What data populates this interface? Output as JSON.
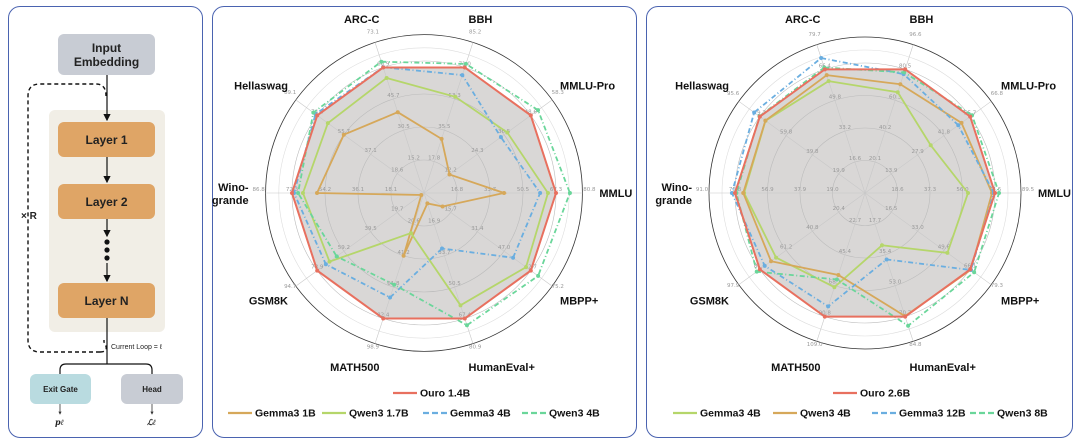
{
  "diagram": {
    "input_embedding": "Input Embedding",
    "layers": [
      "Layer 1",
      "Layer 2",
      "Layer N"
    ],
    "repeat_label": "× R",
    "current_loop": "Current Loop = ℓ",
    "exit_gate": "Exit Gate",
    "head": "Head",
    "exit_output": "pℓ",
    "head_output": "ℒℓ",
    "colors": {
      "layer": "#dfa566",
      "embedding": "#c8ccd4",
      "exit_gate": "#b9dbe0",
      "stack_bg": "#f1eee6",
      "panel_border": "#4a63b0"
    }
  },
  "chart_data": [
    {
      "type": "radar",
      "axes": [
        "ARC-C",
        "BBH",
        "MMLU-Pro",
        "MMLU",
        "MBPP+",
        "HumanEval+",
        "MATH500",
        "GSM8K",
        "Wino-\ngrande",
        "Hellaswag"
      ],
      "ring_ticks": [
        [
          "15.2",
          "30.5",
          "45.7",
          "60.9",
          "73.1"
        ],
        [
          "17.8",
          "35.5",
          "53.3",
          "71.0",
          "85.2"
        ],
        [
          "12.2",
          "24.3",
          "36.5",
          "48.6",
          "58.3"
        ],
        [
          "16.8",
          "33.7",
          "50.5",
          "67.3",
          "80.8"
        ],
        [
          "15.7",
          "31.4",
          "47.0",
          "62.7",
          "75.2"
        ],
        [
          "16.9",
          "33.7",
          "50.5",
          "67.4",
          "80.9"
        ],
        [
          "20.6",
          "41.2",
          "61.8",
          "82.4",
          "98.9"
        ],
        [
          "19.7",
          "39.5",
          "59.2",
          "78.9",
          "94.7"
        ],
        [
          "18.1",
          "36.1",
          "54.2",
          "72.3",
          "86.8"
        ],
        [
          "18.6",
          "37.1",
          "55.7",
          "74.3",
          "89.1"
        ]
      ],
      "highlight": {
        "name": "Ouro 1.4B",
        "color": "#e8705f",
        "fill": "#d9d7d6",
        "values": [
          60.9,
          71.0,
          48.6,
          67.3,
          62.7,
          67.4,
          82.4,
          78.9,
          72.3,
          74.3
        ]
      },
      "series": [
        {
          "name": "Gemma3 1B",
          "color": "#d6a85a",
          "dash": "solid",
          "values": [
            39.2,
            30.6,
            11.6,
            40.8,
            10.9,
            5.6,
            41.2,
            2.0,
            58.6,
            55.8
          ]
        },
        {
          "name": "Qwen3 1.7B",
          "color": "#b5d66a",
          "dash": "solid",
          "values": [
            55.8,
            54.4,
            37.9,
            63.2,
            59.9,
            60.3,
            26.3,
            69.8,
            66.3,
            66.9
          ]
        },
        {
          "name": "Gemma3 4B",
          "color": "#6aaee0",
          "dash": "dashdot",
          "values": [
            61.0,
            66.7,
            35.0,
            59.2,
            52.3,
            29.8,
            68.6,
            72.5,
            71.2,
            75.5
          ]
        },
        {
          "name": "Qwen3 4B",
          "color": "#6ad69a",
          "dash": "dashdot",
          "values": [
            63.7,
            73.0,
            51.9,
            74.4,
            67.0,
            71.0,
            60.2,
            64.5,
            69.0,
            77.0
          ]
        }
      ],
      "legend_placement": "bottom"
    },
    {
      "type": "radar",
      "axes": [
        "ARC-C",
        "BBH",
        "MMLU-Pro",
        "MMLU",
        "MBPP+",
        "HumanEval+",
        "MATH500",
        "GSM8K",
        "Wino-\ngrande",
        "Hellaswag"
      ],
      "ring_ticks": [
        [
          "16.6",
          "33.2",
          "49.8",
          "66.4",
          "79.7"
        ],
        [
          "20.1",
          "40.2",
          "60.3",
          "80.5",
          "96.6"
        ],
        [
          "13.9",
          "27.9",
          "41.8",
          "55.7",
          "66.8"
        ],
        [
          "18.6",
          "37.3",
          "56.0",
          "74.6",
          "89.5"
        ],
        [
          "16.5",
          "33.0",
          "49.6",
          "66.1",
          "79.3"
        ],
        [
          "17.7",
          "35.4",
          "53.0",
          "70.7",
          "84.8"
        ],
        [
          "22.7",
          "45.4",
          "68.1",
          "90.8",
          "109.0"
        ],
        [
          "20.4",
          "40.8",
          "61.2",
          "81.6",
          "97.9"
        ],
        [
          "19.0",
          "37.9",
          "56.9",
          "75.8",
          "91.0"
        ],
        [
          "19.9",
          "39.8",
          "59.8",
          "79.7",
          "95.6"
        ]
      ],
      "highlight": {
        "name": "Ouro 2.6B",
        "color": "#e8705f",
        "fill": "#d9d7d6",
        "values": [
          66.4,
          80.5,
          55.7,
          74.6,
          66.1,
          70.7,
          90.8,
          81.6,
          75.8,
          79.7
        ]
      },
      "series": [
        {
          "name": "Gemma3 4B",
          "color": "#b5d66a",
          "dash": "solid",
          "values": [
            60.1,
            65.6,
            34.8,
            59.1,
            51.8,
            29.9,
            69.2,
            69.0,
            70.5,
            75.4
          ]
        },
        {
          "name": "Qwen3 4B",
          "color": "#d6a85a",
          "dash": "solid",
          "values": [
            63.3,
            70.8,
            51.1,
            72.9,
            66.5,
            70.4,
            60.2,
            72.9,
            71.0,
            75.5
          ]
        },
        {
          "name": "Gemma3 12B",
          "color": "#6aaee0",
          "dash": "dashdot",
          "values": [
            72.5,
            77.4,
            49.4,
            73.9,
            66.6,
            38.0,
            83.3,
            77.8,
            77.6,
            84.0
          ]
        },
        {
          "name": "Qwen3 8B",
          "color": "#6ad69a",
          "dash": "dashdot",
          "values": [
            67.4,
            78.5,
            56.7,
            76.9,
            68.6,
            75.9,
            63.5,
            84.0,
            75.0,
            80.0
          ]
        }
      ],
      "legend_placement": "bottom"
    }
  ]
}
